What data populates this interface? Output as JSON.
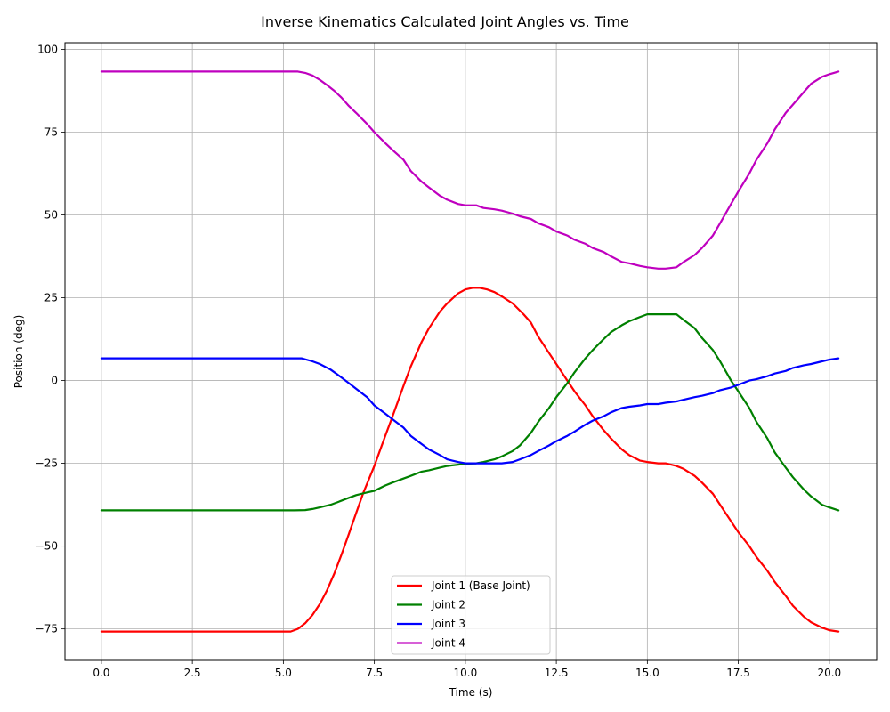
{
  "chart_data": {
    "type": "line",
    "title": "Inverse Kinematics Calculated Joint Angles vs. Time",
    "xlabel": "Time (s)",
    "ylabel": "Position (deg)",
    "xlim": [
      -1.0,
      21.3
    ],
    "ylim": [
      -84.5,
      102
    ],
    "xticks": [
      0.0,
      2.5,
      5.0,
      7.5,
      10.0,
      12.5,
      15.0,
      17.5,
      20.0
    ],
    "xtick_labels": [
      "0.0",
      "2.5",
      "5.0",
      "7.5",
      "10.0",
      "12.5",
      "15.0",
      "17.5",
      "20.0"
    ],
    "yticks": [
      -75,
      -50,
      -25,
      0,
      25,
      50,
      75,
      100
    ],
    "ytick_labels": [
      "−75",
      "−50",
      "−25",
      "0",
      "25",
      "50",
      "75",
      "100"
    ],
    "grid": true,
    "legend_position": "bottom-center",
    "series": [
      {
        "name": "Joint 1 (Base Joint)",
        "color": "#ff0000",
        "points": [
          [
            0,
            -75.8
          ],
          [
            5.2,
            -75.8
          ],
          [
            5.4,
            -75
          ],
          [
            5.6,
            -73.3
          ],
          [
            5.8,
            -70.8
          ],
          [
            6.0,
            -67.5
          ],
          [
            6.2,
            -63.3
          ],
          [
            6.4,
            -58.3
          ],
          [
            6.6,
            -52.5
          ],
          [
            6.8,
            -46.3
          ],
          [
            7.0,
            -40
          ],
          [
            7.2,
            -33.8
          ],
          [
            7.5,
            -25.8
          ],
          [
            7.8,
            -16.7
          ],
          [
            8.0,
            -10.8
          ],
          [
            8.3,
            -1.7
          ],
          [
            8.5,
            4.2
          ],
          [
            8.8,
            11.7
          ],
          [
            9.0,
            15.8
          ],
          [
            9.3,
            20.8
          ],
          [
            9.5,
            23.3
          ],
          [
            9.8,
            26.3
          ],
          [
            10.0,
            27.5
          ],
          [
            10.2,
            28
          ],
          [
            10.4,
            28
          ],
          [
            10.6,
            27.5
          ],
          [
            10.8,
            26.7
          ],
          [
            11.0,
            25.4
          ],
          [
            11.3,
            23.3
          ],
          [
            11.6,
            20
          ],
          [
            11.8,
            17.5
          ],
          [
            12.0,
            13.3
          ],
          [
            12.3,
            8.3
          ],
          [
            12.5,
            5
          ],
          [
            12.8,
            0
          ],
          [
            13.0,
            -3.3
          ],
          [
            13.3,
            -7.5
          ],
          [
            13.5,
            -10.8
          ],
          [
            13.8,
            -15
          ],
          [
            14.0,
            -17.5
          ],
          [
            14.3,
            -20.8
          ],
          [
            14.5,
            -22.5
          ],
          [
            14.8,
            -24.2
          ],
          [
            15.0,
            -24.6
          ],
          [
            15.3,
            -25
          ],
          [
            15.5,
            -25
          ],
          [
            15.8,
            -25.8
          ],
          [
            16.0,
            -26.7
          ],
          [
            16.3,
            -28.8
          ],
          [
            16.5,
            -30.8
          ],
          [
            16.8,
            -34.2
          ],
          [
            17.0,
            -37.5
          ],
          [
            17.3,
            -42.5
          ],
          [
            17.5,
            -45.8
          ],
          [
            17.8,
            -50
          ],
          [
            18.0,
            -53.3
          ],
          [
            18.3,
            -57.5
          ],
          [
            18.5,
            -60.8
          ],
          [
            18.8,
            -65
          ],
          [
            19.0,
            -68
          ],
          [
            19.3,
            -71.3
          ],
          [
            19.5,
            -73
          ],
          [
            19.8,
            -74.6
          ],
          [
            20.0,
            -75.4
          ],
          [
            20.25,
            -75.8
          ]
        ]
      },
      {
        "name": "Joint 2",
        "color": "#008000",
        "points": [
          [
            0,
            -39.2
          ],
          [
            5.3,
            -39.2
          ],
          [
            5.6,
            -39.1
          ],
          [
            5.8,
            -38.8
          ],
          [
            6.0,
            -38.3
          ],
          [
            6.3,
            -37.5
          ],
          [
            6.5,
            -36.7
          ],
          [
            6.8,
            -35.4
          ],
          [
            7.0,
            -34.6
          ],
          [
            7.3,
            -33.8
          ],
          [
            7.5,
            -33.3
          ],
          [
            7.8,
            -31.7
          ],
          [
            8.0,
            -30.8
          ],
          [
            8.3,
            -29.6
          ],
          [
            8.5,
            -28.8
          ],
          [
            8.8,
            -27.5
          ],
          [
            9.0,
            -27.1
          ],
          [
            9.3,
            -26.3
          ],
          [
            9.5,
            -25.8
          ],
          [
            9.8,
            -25.4
          ],
          [
            10.0,
            -25.1
          ],
          [
            10.3,
            -25
          ],
          [
            10.5,
            -24.6
          ],
          [
            10.8,
            -23.8
          ],
          [
            11.0,
            -22.9
          ],
          [
            11.3,
            -21.3
          ],
          [
            11.5,
            -19.6
          ],
          [
            11.8,
            -15.8
          ],
          [
            12.0,
            -12.5
          ],
          [
            12.3,
            -8.3
          ],
          [
            12.5,
            -5
          ],
          [
            12.8,
            -0.8
          ],
          [
            13.0,
            2.5
          ],
          [
            13.3,
            6.7
          ],
          [
            13.5,
            9.2
          ],
          [
            13.8,
            12.5
          ],
          [
            14.0,
            14.6
          ],
          [
            14.3,
            16.7
          ],
          [
            14.5,
            17.9
          ],
          [
            14.8,
            19.2
          ],
          [
            15.0,
            20
          ],
          [
            15.3,
            20
          ],
          [
            15.5,
            20
          ],
          [
            15.8,
            20
          ],
          [
            16.0,
            18.3
          ],
          [
            16.3,
            15.8
          ],
          [
            16.5,
            12.9
          ],
          [
            16.8,
            9.2
          ],
          [
            17.0,
            5.8
          ],
          [
            17.3,
            0
          ],
          [
            17.5,
            -3.3
          ],
          [
            17.8,
            -8.3
          ],
          [
            18.0,
            -12.5
          ],
          [
            18.3,
            -17.5
          ],
          [
            18.5,
            -21.7
          ],
          [
            18.8,
            -26.3
          ],
          [
            19.0,
            -29.2
          ],
          [
            19.3,
            -32.9
          ],
          [
            19.5,
            -35
          ],
          [
            19.8,
            -37.5
          ],
          [
            20.0,
            -38.3
          ],
          [
            20.25,
            -39.2
          ]
        ]
      },
      {
        "name": "Joint 3",
        "color": "#0000ff",
        "points": [
          [
            0,
            6.7
          ],
          [
            5.5,
            6.7
          ],
          [
            5.8,
            5.8
          ],
          [
            6.0,
            5
          ],
          [
            6.3,
            3.3
          ],
          [
            6.5,
            1.7
          ],
          [
            6.8,
            -0.8
          ],
          [
            7.0,
            -2.5
          ],
          [
            7.3,
            -5
          ],
          [
            7.5,
            -7.5
          ],
          [
            7.8,
            -10
          ],
          [
            8.0,
            -11.7
          ],
          [
            8.3,
            -14.2
          ],
          [
            8.5,
            -16.7
          ],
          [
            8.8,
            -19.2
          ],
          [
            9.0,
            -20.8
          ],
          [
            9.3,
            -22.5
          ],
          [
            9.5,
            -23.8
          ],
          [
            9.8,
            -24.6
          ],
          [
            10.0,
            -25
          ],
          [
            10.5,
            -25
          ],
          [
            11.0,
            -25
          ],
          [
            11.3,
            -24.6
          ],
          [
            11.5,
            -23.8
          ],
          [
            11.8,
            -22.5
          ],
          [
            12.0,
            -21.3
          ],
          [
            12.3,
            -19.6
          ],
          [
            12.5,
            -18.3
          ],
          [
            12.8,
            -16.7
          ],
          [
            13.0,
            -15.4
          ],
          [
            13.3,
            -13.3
          ],
          [
            13.5,
            -12.1
          ],
          [
            13.8,
            -10.8
          ],
          [
            14.0,
            -9.6
          ],
          [
            14.3,
            -8.3
          ],
          [
            14.5,
            -7.9
          ],
          [
            14.8,
            -7.5
          ],
          [
            15.0,
            -7.1
          ],
          [
            15.3,
            -7.1
          ],
          [
            15.5,
            -6.7
          ],
          [
            15.8,
            -6.3
          ],
          [
            16.0,
            -5.8
          ],
          [
            16.3,
            -5
          ],
          [
            16.5,
            -4.6
          ],
          [
            16.8,
            -3.8
          ],
          [
            17.0,
            -2.9
          ],
          [
            17.3,
            -2.1
          ],
          [
            17.5,
            -1.3
          ],
          [
            17.8,
            0
          ],
          [
            18.0,
            0.4
          ],
          [
            18.3,
            1.3
          ],
          [
            18.5,
            2.1
          ],
          [
            18.8,
            2.9
          ],
          [
            19.0,
            3.8
          ],
          [
            19.3,
            4.6
          ],
          [
            19.5,
            5
          ],
          [
            19.8,
            5.8
          ],
          [
            20.0,
            6.3
          ],
          [
            20.25,
            6.7
          ]
        ]
      },
      {
        "name": "Joint 4",
        "color": "#bf00bf",
        "points": [
          [
            0,
            93.3
          ],
          [
            5.4,
            93.3
          ],
          [
            5.6,
            92.9
          ],
          [
            5.8,
            92.1
          ],
          [
            6.0,
            90.8
          ],
          [
            6.2,
            89.2
          ],
          [
            6.4,
            87.5
          ],
          [
            6.6,
            85.4
          ],
          [
            6.8,
            82.9
          ],
          [
            7.0,
            80.8
          ],
          [
            7.3,
            77.5
          ],
          [
            7.5,
            75
          ],
          [
            7.8,
            71.7
          ],
          [
            8.0,
            69.6
          ],
          [
            8.3,
            66.7
          ],
          [
            8.5,
            63.3
          ],
          [
            8.8,
            60
          ],
          [
            9.0,
            58.3
          ],
          [
            9.3,
            55.8
          ],
          [
            9.5,
            54.6
          ],
          [
            9.8,
            53.3
          ],
          [
            10.0,
            52.9
          ],
          [
            10.3,
            52.9
          ],
          [
            10.5,
            52.1
          ],
          [
            10.8,
            51.7
          ],
          [
            11.0,
            51.3
          ],
          [
            11.3,
            50.4
          ],
          [
            11.5,
            49.6
          ],
          [
            11.8,
            48.8
          ],
          [
            12.0,
            47.5
          ],
          [
            12.3,
            46.3
          ],
          [
            12.5,
            45
          ],
          [
            12.8,
            43.8
          ],
          [
            13.0,
            42.5
          ],
          [
            13.3,
            41.3
          ],
          [
            13.5,
            40
          ],
          [
            13.8,
            38.8
          ],
          [
            14.0,
            37.5
          ],
          [
            14.3,
            35.8
          ],
          [
            14.5,
            35.4
          ],
          [
            14.8,
            34.6
          ],
          [
            15.0,
            34.2
          ],
          [
            15.3,
            33.8
          ],
          [
            15.5,
            33.8
          ],
          [
            15.8,
            34.2
          ],
          [
            16.0,
            35.8
          ],
          [
            16.3,
            37.9
          ],
          [
            16.5,
            40
          ],
          [
            16.8,
            43.8
          ],
          [
            17.0,
            47.5
          ],
          [
            17.3,
            53.3
          ],
          [
            17.5,
            57.1
          ],
          [
            17.8,
            62.5
          ],
          [
            18.0,
            66.7
          ],
          [
            18.3,
            71.7
          ],
          [
            18.5,
            75.8
          ],
          [
            18.8,
            80.8
          ],
          [
            19.0,
            83.3
          ],
          [
            19.3,
            87.1
          ],
          [
            19.5,
            89.6
          ],
          [
            19.8,
            91.7
          ],
          [
            20.0,
            92.5
          ],
          [
            20.25,
            93.3
          ]
        ]
      }
    ]
  }
}
